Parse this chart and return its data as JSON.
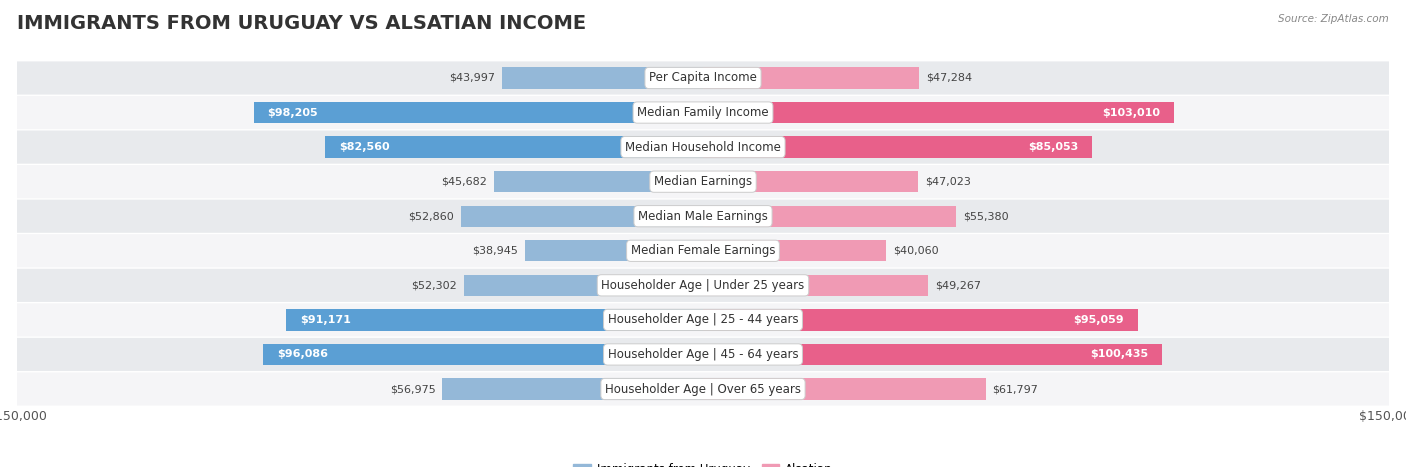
{
  "title": "IMMIGRANTS FROM URUGUAY VS ALSATIAN INCOME",
  "source": "Source: ZipAtlas.com",
  "categories": [
    "Per Capita Income",
    "Median Family Income",
    "Median Household Income",
    "Median Earnings",
    "Median Male Earnings",
    "Median Female Earnings",
    "Householder Age | Under 25 years",
    "Householder Age | 25 - 44 years",
    "Householder Age | 45 - 64 years",
    "Householder Age | Over 65 years"
  ],
  "uruguay_values": [
    43997,
    98205,
    82560,
    45682,
    52860,
    38945,
    52302,
    91171,
    96086,
    56975
  ],
  "alsatian_values": [
    47284,
    103010,
    85053,
    47023,
    55380,
    40060,
    49267,
    95059,
    100435,
    61797
  ],
  "uruguay_labels": [
    "$43,997",
    "$98,205",
    "$82,560",
    "$45,682",
    "$52,860",
    "$38,945",
    "$52,302",
    "$91,171",
    "$96,086",
    "$56,975"
  ],
  "alsatian_labels": [
    "$47,284",
    "$103,010",
    "$85,053",
    "$47,023",
    "$55,380",
    "$40,060",
    "$49,267",
    "$95,059",
    "$100,435",
    "$61,797"
  ],
  "uruguay_large": [
    false,
    true,
    true,
    false,
    false,
    false,
    false,
    true,
    true,
    false
  ],
  "alsatian_large": [
    false,
    true,
    true,
    false,
    false,
    false,
    false,
    true,
    true,
    false
  ],
  "uruguay_color": "#94b8d8",
  "alsatian_color": "#f09ab4",
  "uruguay_color_bright": "#5b9fd4",
  "alsatian_color_bright": "#e8608a",
  "bar_height": 0.62,
  "max_value": 150000,
  "row_bg_even": "#e8eaed",
  "row_bg_odd": "#f5f5f7",
  "title_fontsize": 14,
  "label_fontsize": 8.0,
  "category_fontsize": 8.5,
  "axis_label_fontsize": 9.0,
  "legend_label": [
    "Immigrants from Uruguay",
    "Alsatian"
  ]
}
